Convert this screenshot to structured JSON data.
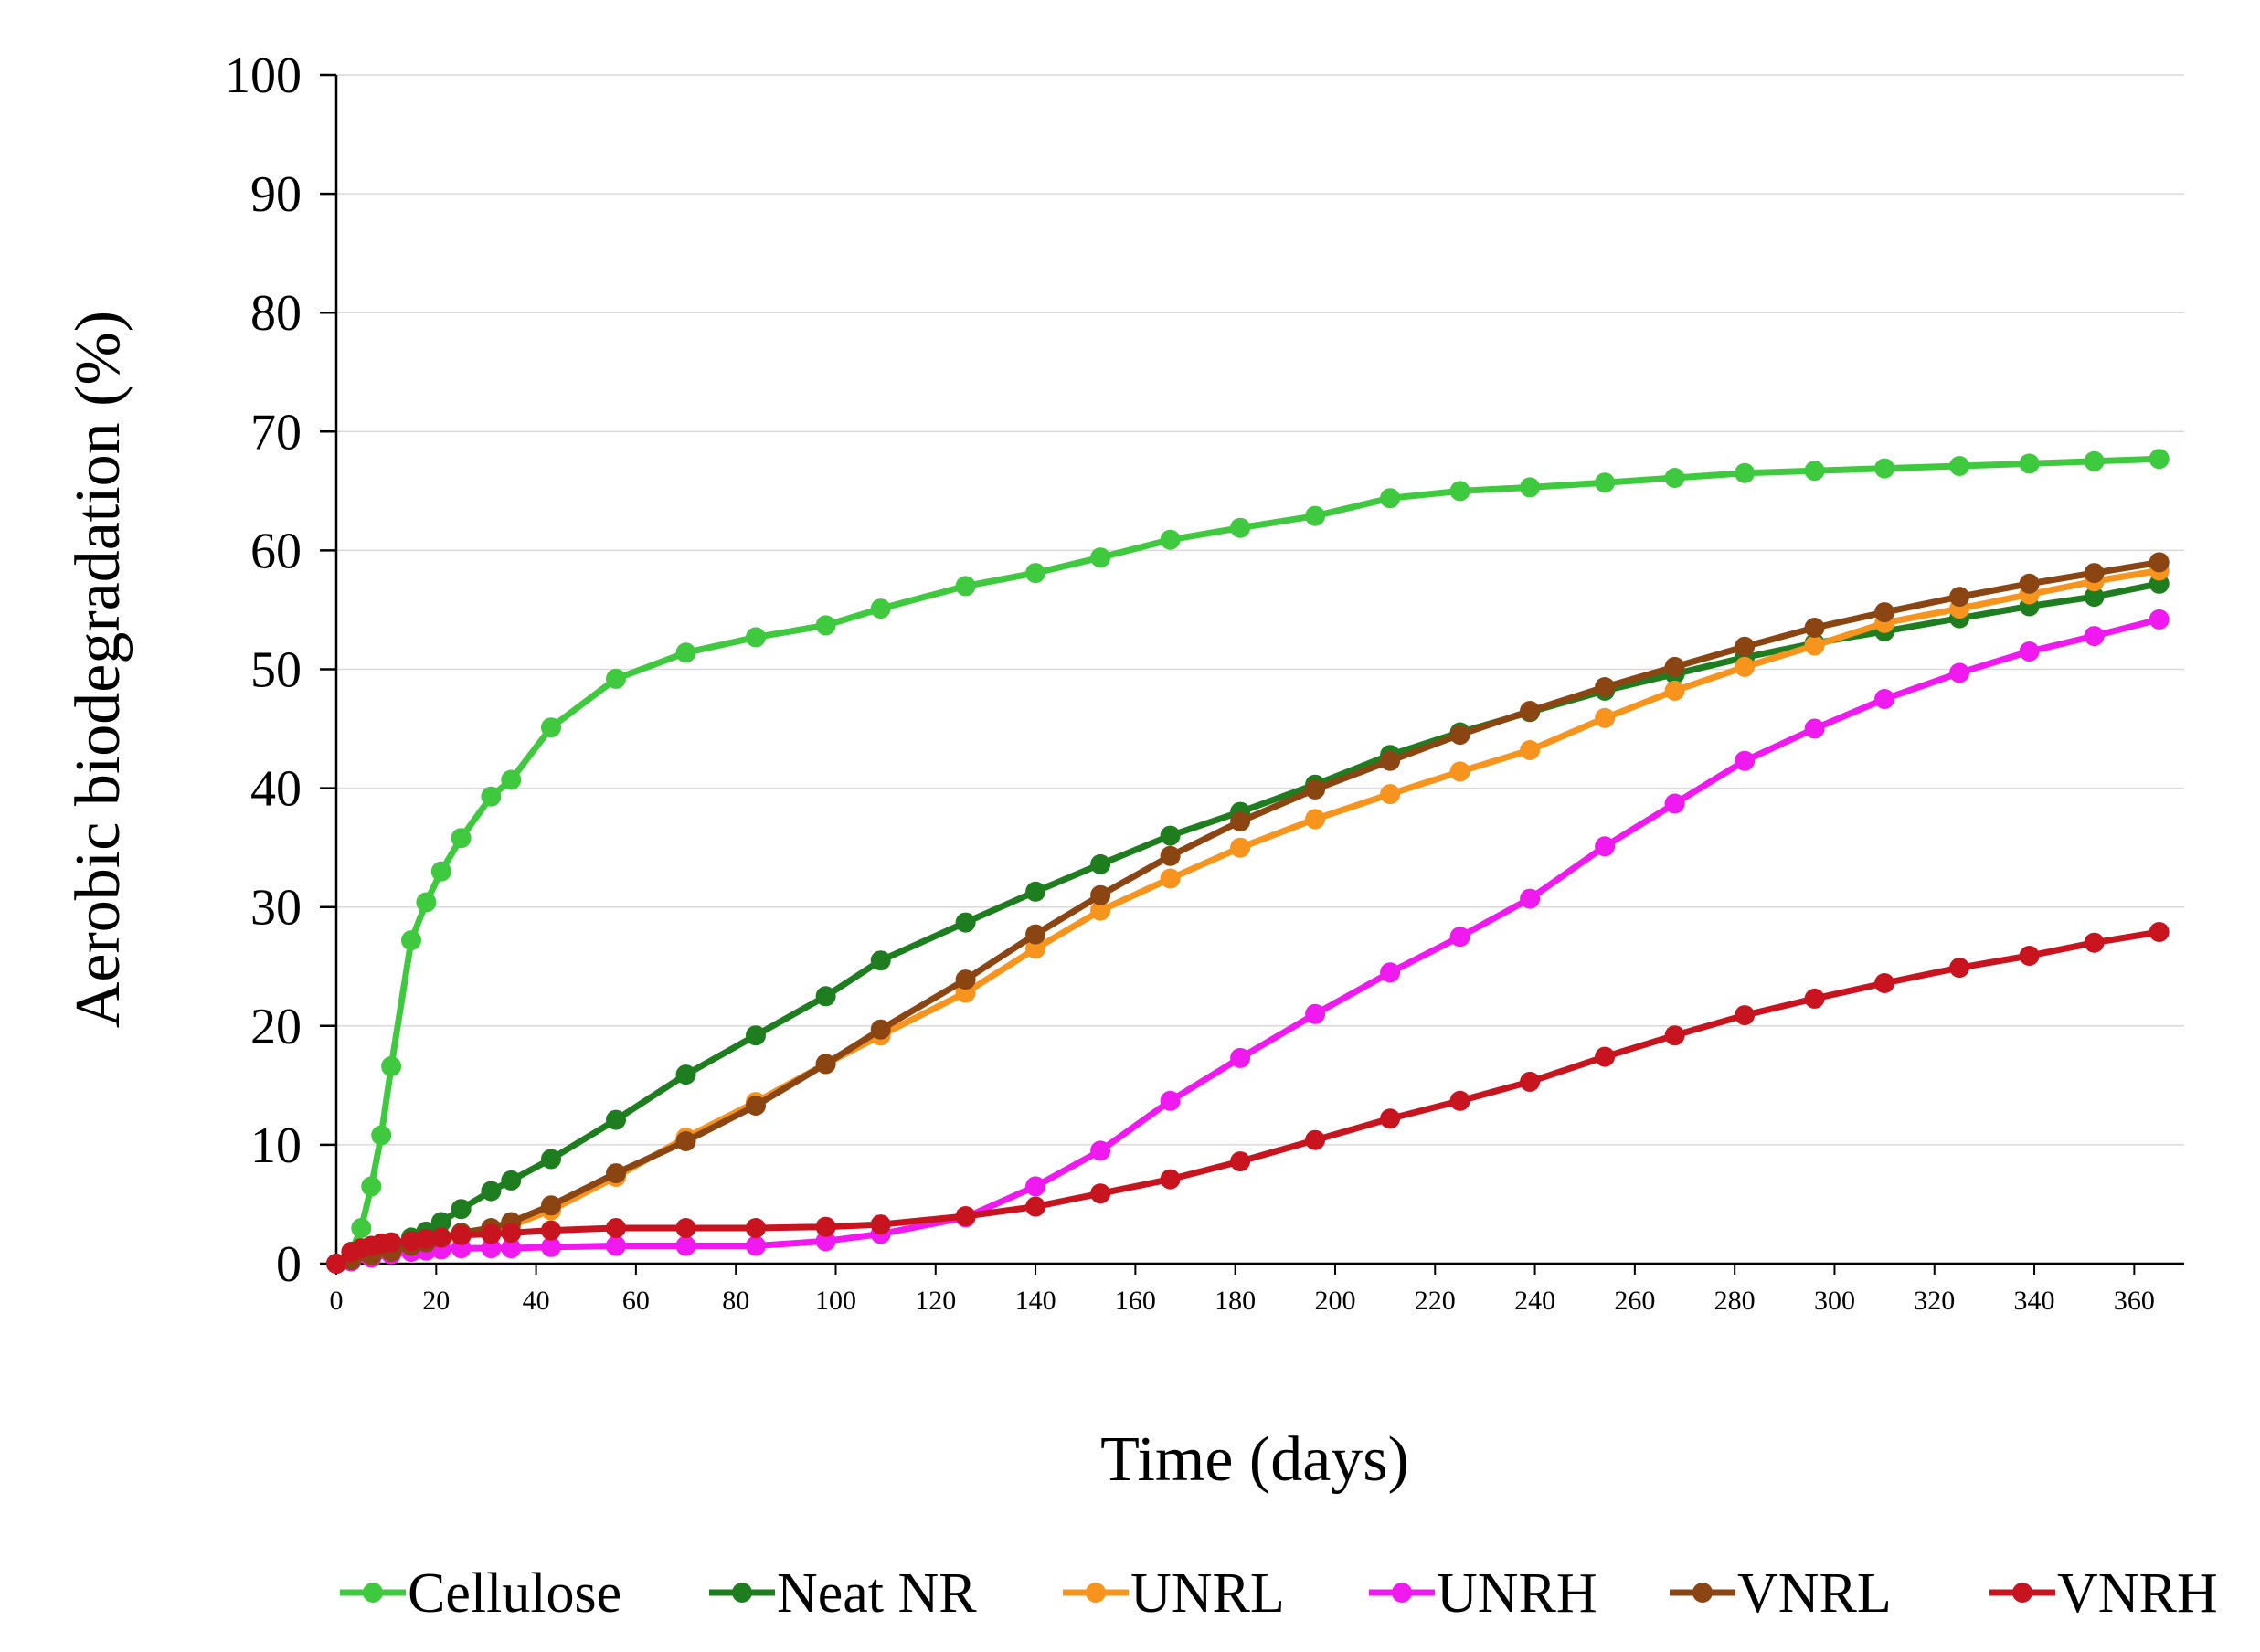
{
  "chart_data": {
    "type": "line",
    "title": "",
    "xlabel": "Time (days)",
    "ylabel": "Aerobic biodegradation (%)",
    "xlim": [
      0,
      370
    ],
    "ylim": [
      0,
      100
    ],
    "x_ticks": [
      0,
      20,
      40,
      60,
      80,
      100,
      120,
      140,
      160,
      180,
      200,
      220,
      240,
      260,
      280,
      300,
      320,
      340,
      360
    ],
    "y_ticks": [
      0,
      10,
      20,
      30,
      40,
      50,
      60,
      70,
      80,
      90,
      100
    ],
    "grid": "horizontal",
    "legend_position": "bottom",
    "series": [
      {
        "name": "Cellulose",
        "color": "#3ec93e",
        "points": [
          [
            0,
            0
          ],
          [
            3,
            1
          ],
          [
            5,
            3
          ],
          [
            7,
            6.5
          ],
          [
            9,
            10.8
          ],
          [
            11,
            16.6
          ],
          [
            15,
            27.2
          ],
          [
            18,
            30.4
          ],
          [
            21,
            33
          ],
          [
            25,
            35.8
          ],
          [
            31,
            39.3
          ],
          [
            35,
            40.7
          ],
          [
            43,
            45.1
          ],
          [
            56,
            49.2
          ],
          [
            70,
            51.4
          ],
          [
            84,
            52.7
          ],
          [
            98,
            53.7
          ],
          [
            109,
            55.1
          ],
          [
            126,
            57
          ],
          [
            140,
            58.1
          ],
          [
            153,
            59.4
          ],
          [
            167,
            60.9
          ],
          [
            181,
            61.9
          ],
          [
            196,
            62.9
          ],
          [
            211,
            64.4
          ],
          [
            225,
            65
          ],
          [
            239,
            65.3
          ],
          [
            254,
            65.7
          ],
          [
            268,
            66.1
          ],
          [
            282,
            66.5
          ],
          [
            296,
            66.7
          ],
          [
            310,
            66.9
          ],
          [
            325,
            67.1
          ],
          [
            339,
            67.3
          ],
          [
            352,
            67.5
          ],
          [
            365,
            67.7
          ]
        ]
      },
      {
        "name": "Neat NR",
        "color": "#1e7d1e",
        "points": [
          [
            0,
            0
          ],
          [
            3,
            0.5
          ],
          [
            7,
            1
          ],
          [
            11,
            1.5
          ],
          [
            15,
            2.2
          ],
          [
            18,
            2.7
          ],
          [
            21,
            3.5
          ],
          [
            25,
            4.6
          ],
          [
            31,
            6.1
          ],
          [
            35,
            7
          ],
          [
            43,
            8.8
          ],
          [
            56,
            12.1
          ],
          [
            70,
            15.9
          ],
          [
            84,
            19.2
          ],
          [
            98,
            22.5
          ],
          [
            109,
            25.5
          ],
          [
            126,
            28.7
          ],
          [
            140,
            31.3
          ],
          [
            153,
            33.6
          ],
          [
            167,
            36
          ],
          [
            181,
            38
          ],
          [
            196,
            40.3
          ],
          [
            211,
            42.8
          ],
          [
            225,
            44.7
          ],
          [
            239,
            46.4
          ],
          [
            254,
            48.2
          ],
          [
            268,
            49.6
          ],
          [
            282,
            51
          ],
          [
            296,
            52.2
          ],
          [
            310,
            53.2
          ],
          [
            325,
            54.3
          ],
          [
            339,
            55.3
          ],
          [
            352,
            56.1
          ],
          [
            365,
            57.2
          ]
        ]
      },
      {
        "name": "UNRL",
        "color": "#f7941d",
        "points": [
          [
            0,
            0
          ],
          [
            3,
            0.3
          ],
          [
            7,
            0.7
          ],
          [
            11,
            1
          ],
          [
            15,
            1.4
          ],
          [
            18,
            1.7
          ],
          [
            21,
            2
          ],
          [
            25,
            2.3
          ],
          [
            31,
            2.8
          ],
          [
            35,
            3.2
          ],
          [
            43,
            4.5
          ],
          [
            56,
            7.3
          ],
          [
            70,
            10.6
          ],
          [
            84,
            13.6
          ],
          [
            98,
            16.8
          ],
          [
            109,
            19.2
          ],
          [
            126,
            22.8
          ],
          [
            140,
            26.5
          ],
          [
            153,
            29.7
          ],
          [
            167,
            32.4
          ],
          [
            181,
            35
          ],
          [
            196,
            37.4
          ],
          [
            211,
            39.5
          ],
          [
            225,
            41.4
          ],
          [
            239,
            43.2
          ],
          [
            254,
            45.9
          ],
          [
            268,
            48.2
          ],
          [
            282,
            50.2
          ],
          [
            296,
            52
          ],
          [
            310,
            53.9
          ],
          [
            325,
            55.1
          ],
          [
            339,
            56.3
          ],
          [
            352,
            57.4
          ],
          [
            365,
            58.3
          ]
        ]
      },
      {
        "name": "UNRH",
        "color": "#f019f0",
        "points": [
          [
            0,
            0
          ],
          [
            3,
            0.2
          ],
          [
            7,
            0.5
          ],
          [
            11,
            0.8
          ],
          [
            15,
            1
          ],
          [
            18,
            1.1
          ],
          [
            21,
            1.2
          ],
          [
            25,
            1.3
          ],
          [
            31,
            1.3
          ],
          [
            35,
            1.3
          ],
          [
            43,
            1.4
          ],
          [
            56,
            1.5
          ],
          [
            70,
            1.5
          ],
          [
            84,
            1.5
          ],
          [
            98,
            1.9
          ],
          [
            109,
            2.5
          ],
          [
            126,
            3.9
          ],
          [
            140,
            6.5
          ],
          [
            153,
            9.5
          ],
          [
            167,
            13.7
          ],
          [
            181,
            17.3
          ],
          [
            196,
            21
          ],
          [
            211,
            24.5
          ],
          [
            225,
            27.5
          ],
          [
            239,
            30.7
          ],
          [
            254,
            35.1
          ],
          [
            268,
            38.7
          ],
          [
            282,
            42.3
          ],
          [
            296,
            45
          ],
          [
            310,
            47.5
          ],
          [
            325,
            49.7
          ],
          [
            339,
            51.5
          ],
          [
            352,
            52.8
          ],
          [
            365,
            54.2
          ]
        ]
      },
      {
        "name": "VNRL",
        "color": "#8b4513",
        "points": [
          [
            0,
            0
          ],
          [
            3,
            0.3
          ],
          [
            7,
            0.7
          ],
          [
            11,
            1
          ],
          [
            15,
            1.5
          ],
          [
            18,
            1.8
          ],
          [
            21,
            2.2
          ],
          [
            25,
            2.6
          ],
          [
            31,
            3
          ],
          [
            35,
            3.5
          ],
          [
            43,
            4.9
          ],
          [
            56,
            7.6
          ],
          [
            70,
            10.3
          ],
          [
            84,
            13.3
          ],
          [
            98,
            16.8
          ],
          [
            109,
            19.7
          ],
          [
            126,
            23.9
          ],
          [
            140,
            27.7
          ],
          [
            153,
            31
          ],
          [
            167,
            34.3
          ],
          [
            181,
            37.2
          ],
          [
            196,
            39.9
          ],
          [
            211,
            42.3
          ],
          [
            225,
            44.5
          ],
          [
            239,
            46.5
          ],
          [
            254,
            48.5
          ],
          [
            268,
            50.2
          ],
          [
            282,
            51.9
          ],
          [
            296,
            53.5
          ],
          [
            310,
            54.8
          ],
          [
            325,
            56.1
          ],
          [
            339,
            57.2
          ],
          [
            352,
            58.1
          ],
          [
            365,
            59
          ]
        ]
      },
      {
        "name": "VNRH",
        "color": "#c8141e",
        "points": [
          [
            0,
            0
          ],
          [
            3,
            1
          ],
          [
            5,
            1.3
          ],
          [
            7,
            1.5
          ],
          [
            9,
            1.7
          ],
          [
            11,
            1.8
          ],
          [
            15,
            1.9
          ],
          [
            18,
            2.1
          ],
          [
            21,
            2.2
          ],
          [
            25,
            2.4
          ],
          [
            31,
            2.5
          ],
          [
            35,
            2.6
          ],
          [
            43,
            2.8
          ],
          [
            56,
            3
          ],
          [
            70,
            3
          ],
          [
            84,
            3
          ],
          [
            98,
            3.1
          ],
          [
            109,
            3.3
          ],
          [
            126,
            4
          ],
          [
            140,
            4.8
          ],
          [
            153,
            5.9
          ],
          [
            167,
            7.1
          ],
          [
            181,
            8.6
          ],
          [
            196,
            10.4
          ],
          [
            211,
            12.2
          ],
          [
            225,
            13.7
          ],
          [
            239,
            15.3
          ],
          [
            254,
            17.4
          ],
          [
            268,
            19.2
          ],
          [
            282,
            20.9
          ],
          [
            296,
            22.3
          ],
          [
            310,
            23.6
          ],
          [
            325,
            24.9
          ],
          [
            339,
            25.9
          ],
          [
            352,
            27
          ],
          [
            365,
            27.9
          ]
        ]
      }
    ]
  }
}
